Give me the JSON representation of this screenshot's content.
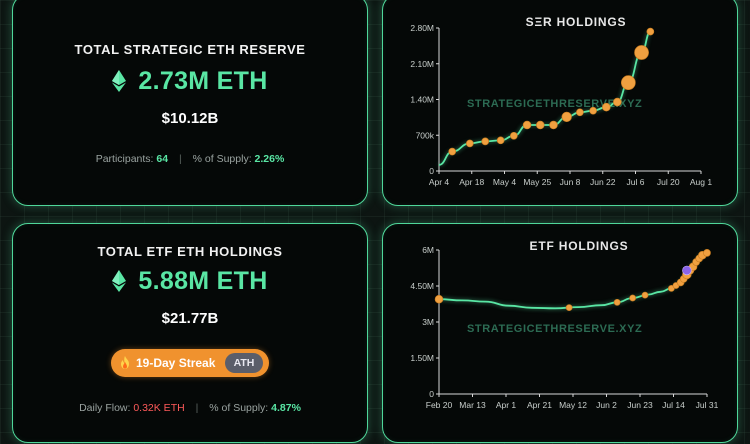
{
  "ser_card": {
    "title": "TOTAL STRATEGIC ETH RESERVE",
    "amount": "2.73M ETH",
    "usd": "$10.12B",
    "participants_label": "Participants:",
    "participants_value": "64",
    "supply_label": "% of Supply:",
    "supply_value": "2.26%",
    "icon": "ethereum-icon",
    "accent": "#59e6a4"
  },
  "etf_card": {
    "title": "TOTAL ETF ETH HOLDINGS",
    "amount": "5.88M ETH",
    "usd": "$21.77B",
    "streak_label": "19-Day Streak",
    "ath_label": "ATH",
    "daily_flow_label": "Daily Flow:",
    "daily_flow_value": "0.32K ETH",
    "supply_label": "% of Supply:",
    "supply_value": "4.87%",
    "icon": "ethereum-icon",
    "streak_color": "#f0922e",
    "negative_color": "#ff5a5a"
  },
  "chart_data": [
    {
      "type": "line",
      "title": "SΞR HOLDINGS",
      "watermark": "STRATEGICETHRESERVE.XYZ",
      "x_ticks": [
        "Apr 4",
        "Apr 18",
        "May 4",
        "May 25",
        "Jun 8",
        "Jun 22",
        "Jul 6",
        "Jul 20",
        "Aug 1"
      ],
      "y_ticks": [
        "0",
        "700k",
        "1.40M",
        "2.10M",
        "2.80M"
      ],
      "ylim": [
        0,
        2800000
      ],
      "xlim": [
        0,
        119
      ],
      "line_color": "#59e6a4",
      "marker_color": "#f0a040",
      "series": [
        {
          "points": [
            [
              0,
              120000
            ],
            [
              6,
              380000
            ],
            [
              14,
              540000
            ],
            [
              21,
              580000
            ],
            [
              28,
              600000
            ],
            [
              34,
              690000
            ],
            [
              40,
              900000
            ],
            [
              46,
              900000
            ],
            [
              52,
              900000
            ],
            [
              58,
              1060000
            ],
            [
              64,
              1150000
            ],
            [
              70,
              1180000
            ],
            [
              76,
              1250000
            ],
            [
              81,
              1350000
            ],
            [
              86,
              1730000
            ],
            [
              92,
              2320000
            ],
            [
              96,
              2730000
            ]
          ],
          "markers": [
            {
              "x": 6,
              "y": 380000,
              "r": 1.6
            },
            {
              "x": 14,
              "y": 540000,
              "r": 1.6
            },
            {
              "x": 21,
              "y": 580000,
              "r": 1.6
            },
            {
              "x": 28,
              "y": 600000,
              "r": 1.6
            },
            {
              "x": 34,
              "y": 690000,
              "r": 1.6
            },
            {
              "x": 40,
              "y": 900000,
              "r": 1.8
            },
            {
              "x": 46,
              "y": 900000,
              "r": 1.8
            },
            {
              "x": 52,
              "y": 900000,
              "r": 1.8
            },
            {
              "x": 58,
              "y": 1060000,
              "r": 2.2
            },
            {
              "x": 64,
              "y": 1150000,
              "r": 1.6
            },
            {
              "x": 70,
              "y": 1180000,
              "r": 1.6
            },
            {
              "x": 76,
              "y": 1250000,
              "r": 1.8
            },
            {
              "x": 81,
              "y": 1350000,
              "r": 1.8
            },
            {
              "x": 86,
              "y": 1730000,
              "r": 3.2
            },
            {
              "x": 92,
              "y": 2320000,
              "r": 3.2
            },
            {
              "x": 96,
              "y": 2730000,
              "r": 1.6
            }
          ]
        }
      ]
    },
    {
      "type": "line",
      "title": "ETF HOLDINGS",
      "watermark": "STRATEGICETHRESERVE.XYZ",
      "x_ticks": [
        "Feb 20",
        "Mar 13",
        "Apr 1",
        "Apr 21",
        "May 12",
        "Jun 2",
        "Jun 23",
        "Jul 14",
        "Jul 31"
      ],
      "y_ticks": [
        "0",
        "1.50M",
        "3M",
        "4.50M",
        "6M"
      ],
      "ylim": [
        0,
        6000000
      ],
      "xlim": [
        0,
        173
      ],
      "line_color": "#59e6a4",
      "marker_color": "#f0a040",
      "highlight_color": "#8a63e8",
      "series": [
        {
          "points": [
            [
              0,
              3950000
            ],
            [
              15,
              3900000
            ],
            [
              30,
              3850000
            ],
            [
              45,
              3680000
            ],
            [
              60,
              3590000
            ],
            [
              75,
              3570000
            ],
            [
              90,
              3620000
            ],
            [
              105,
              3700000
            ],
            [
              115,
              3820000
            ],
            [
              125,
              4000000
            ],
            [
              135,
              4140000
            ],
            [
              143,
              4260000
            ],
            [
              150,
              4400000
            ],
            [
              156,
              4650000
            ],
            [
              160,
              4980000
            ],
            [
              165,
              5450000
            ],
            [
              170,
              5800000
            ],
            [
              173,
              5880000
            ]
          ],
          "markers": [
            {
              "x": 0,
              "y": 3950000,
              "r": 1.8,
              "highlight": false
            },
            {
              "x": 84,
              "y": 3600000,
              "r": 1.4,
              "highlight": false
            },
            {
              "x": 115,
              "y": 3820000,
              "r": 1.4,
              "highlight": false
            },
            {
              "x": 125,
              "y": 4000000,
              "r": 1.4,
              "highlight": false
            },
            {
              "x": 133,
              "y": 4120000,
              "r": 1.4,
              "highlight": false
            },
            {
              "x": 150,
              "y": 4400000,
              "r": 1.4,
              "highlight": false
            },
            {
              "x": 153,
              "y": 4520000,
              "r": 1.4,
              "highlight": false
            },
            {
              "x": 156,
              "y": 4650000,
              "r": 1.6,
              "highlight": false
            },
            {
              "x": 158,
              "y": 4800000,
              "r": 1.6,
              "highlight": false
            },
            {
              "x": 160,
              "y": 4980000,
              "r": 2.0,
              "highlight": false
            },
            {
              "x": 162,
              "y": 5150000,
              "r": 1.8,
              "highlight": false
            },
            {
              "x": 164,
              "y": 5300000,
              "r": 1.8,
              "highlight": false
            },
            {
              "x": 166,
              "y": 5500000,
              "r": 1.6,
              "highlight": false
            },
            {
              "x": 168,
              "y": 5650000,
              "r": 1.6,
              "highlight": false
            },
            {
              "x": 170,
              "y": 5780000,
              "r": 1.8,
              "highlight": false
            },
            {
              "x": 173,
              "y": 5880000,
              "r": 1.6,
              "highlight": false
            },
            {
              "x": 160,
              "y": 5150000,
              "r": 2.0,
              "highlight": true
            }
          ]
        }
      ]
    }
  ]
}
